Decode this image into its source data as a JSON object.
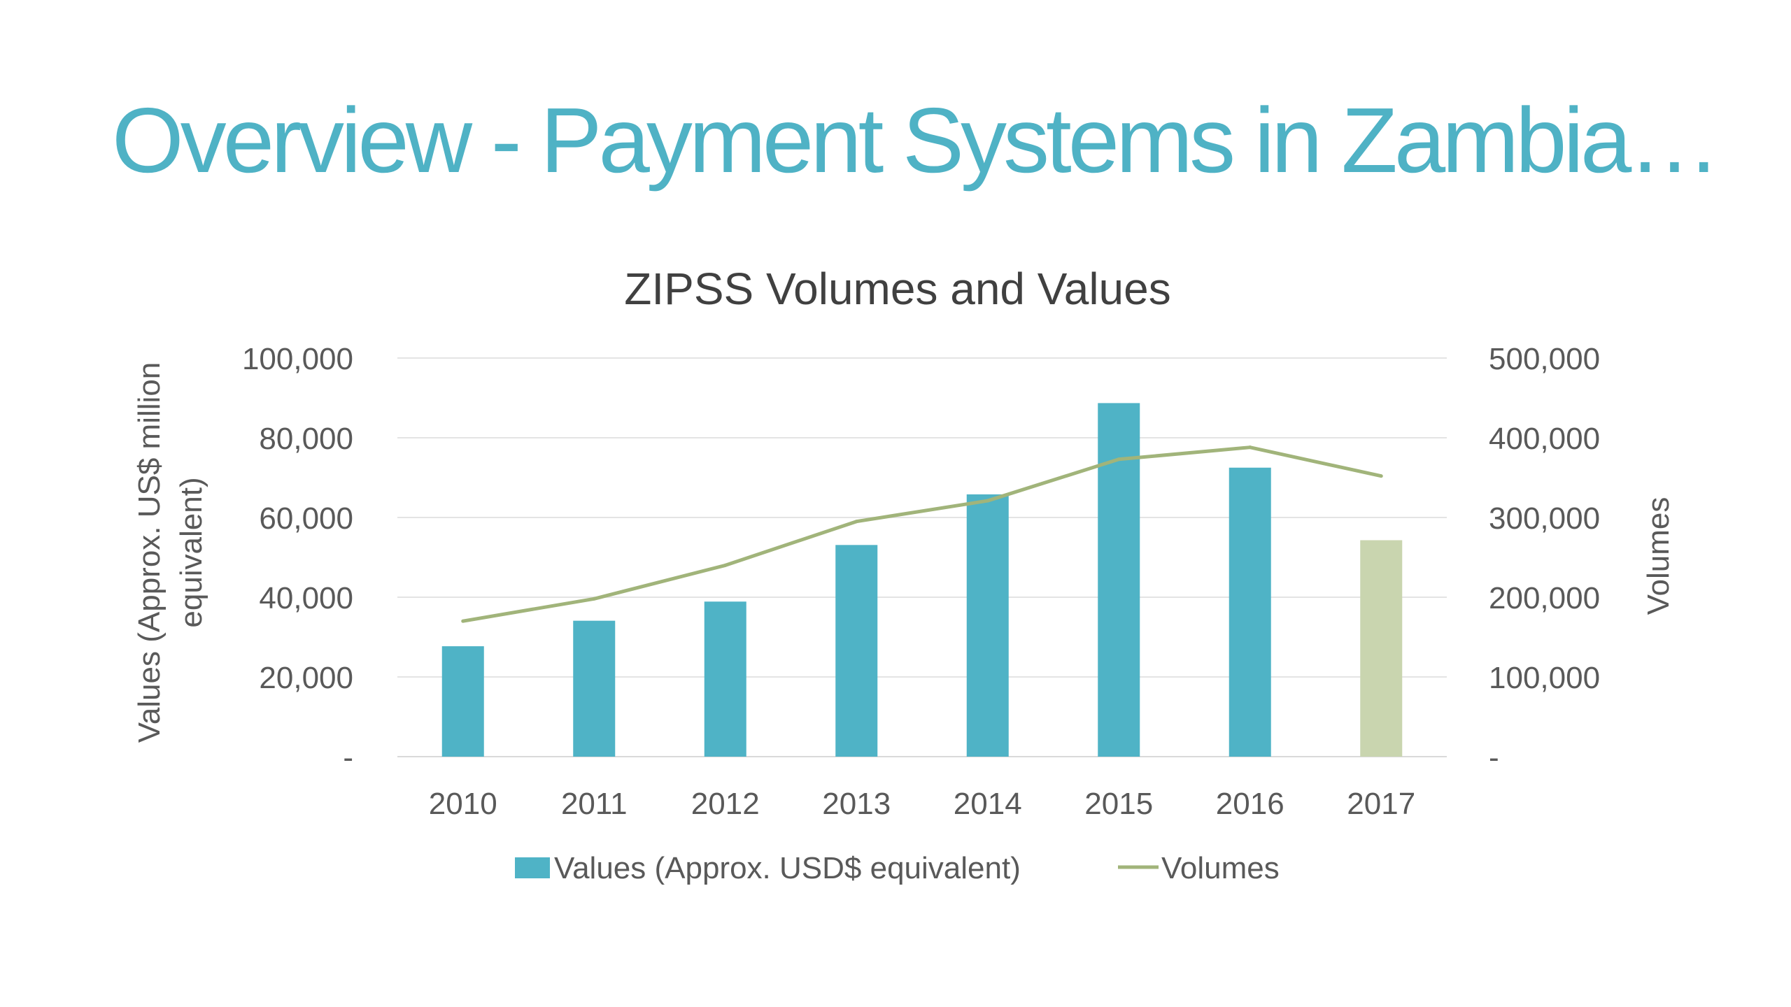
{
  "slide": {
    "title": "Overview - Payment Systems in Zambia…"
  },
  "chart_data": {
    "type": "bar",
    "title": "ZIPSS Volumes and Values",
    "categories": [
      "2010",
      "2011",
      "2012",
      "2013",
      "2014",
      "2015",
      "2016",
      "2017"
    ],
    "series": [
      {
        "name": "Values (Approx. USD$ equivalent)",
        "type": "bar",
        "axis": "left",
        "color": "#4FB3C6",
        "highlight": {
          "index": 7,
          "color": "#C9D5AF"
        },
        "values": [
          27700,
          34100,
          38900,
          53100,
          65800,
          88700,
          72500,
          54300
        ]
      },
      {
        "name": "Volumes",
        "type": "line",
        "axis": "right",
        "color": "#A1B47A",
        "values": [
          170000,
          198000,
          240000,
          295000,
          321000,
          373000,
          388000,
          352000
        ]
      }
    ],
    "ylabel": "Values (Approx. US$ million equivalent)",
    "y2label": "Volumes",
    "ylim": [
      0,
      100000
    ],
    "y2lim": [
      0,
      500000
    ],
    "yticks": [
      "-",
      "20,000",
      "40,000",
      "60,000",
      "80,000",
      "100,000"
    ],
    "y2ticks": [
      "-",
      "100,000",
      "200,000",
      "300,000",
      "400,000",
      "500,000"
    ],
    "grid": true,
    "legend": "bottom"
  }
}
